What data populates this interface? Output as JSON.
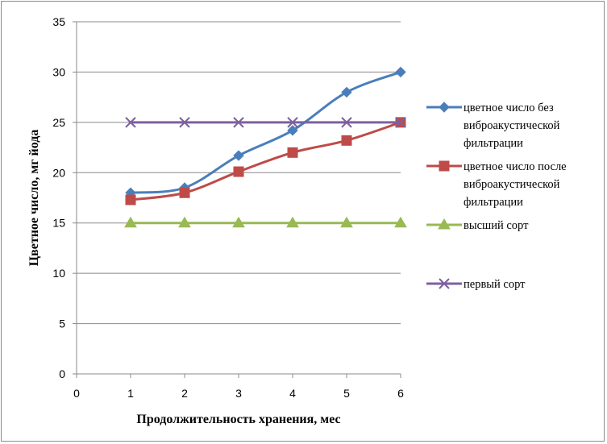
{
  "chart_data": {
    "type": "line",
    "title": "",
    "xlabel": "Продолжительность хранения, мес",
    "ylabel": "Цветное число, мг йода",
    "xlim": [
      0,
      6
    ],
    "ylim": [
      0,
      35
    ],
    "x_ticks": [
      "0",
      "1",
      "2",
      "3",
      "4",
      "5",
      "6"
    ],
    "y_ticks": [
      "0",
      "5",
      "10",
      "15",
      "20",
      "25",
      "30",
      "35"
    ],
    "grid": "horizontal",
    "legend_position": "right",
    "x": [
      1,
      2,
      3,
      4,
      5,
      6
    ],
    "series": [
      {
        "name": "цветное число без виброакустической фильтрации",
        "legend_lines": [
          "цветное число без",
          "виброакустической",
          "фильтрации"
        ],
        "values": [
          18,
          18.5,
          21.7,
          24.2,
          28,
          30
        ],
        "color": "#4a7ebb",
        "marker": "diamond",
        "smooth": true
      },
      {
        "name": "цветное число после виброакустической фильтрации",
        "legend_lines": [
          "цветное число после",
          "виброакустической",
          "фильтрации"
        ],
        "values": [
          17.3,
          18,
          20.1,
          22,
          23.2,
          25
        ],
        "color": "#be4b48",
        "marker": "square",
        "smooth": true
      },
      {
        "name": "высший сорт",
        "legend_lines": [
          "высший сорт"
        ],
        "values": [
          15,
          15,
          15,
          15,
          15,
          15
        ],
        "color": "#98b954",
        "marker": "triangle",
        "smooth": false
      },
      {
        "name": "первый сорт",
        "legend_lines": [
          "первый сорт"
        ],
        "values": [
          25,
          25,
          25,
          25,
          25,
          25
        ],
        "color": "#7d60a0",
        "marker": "x",
        "smooth": false
      }
    ]
  }
}
